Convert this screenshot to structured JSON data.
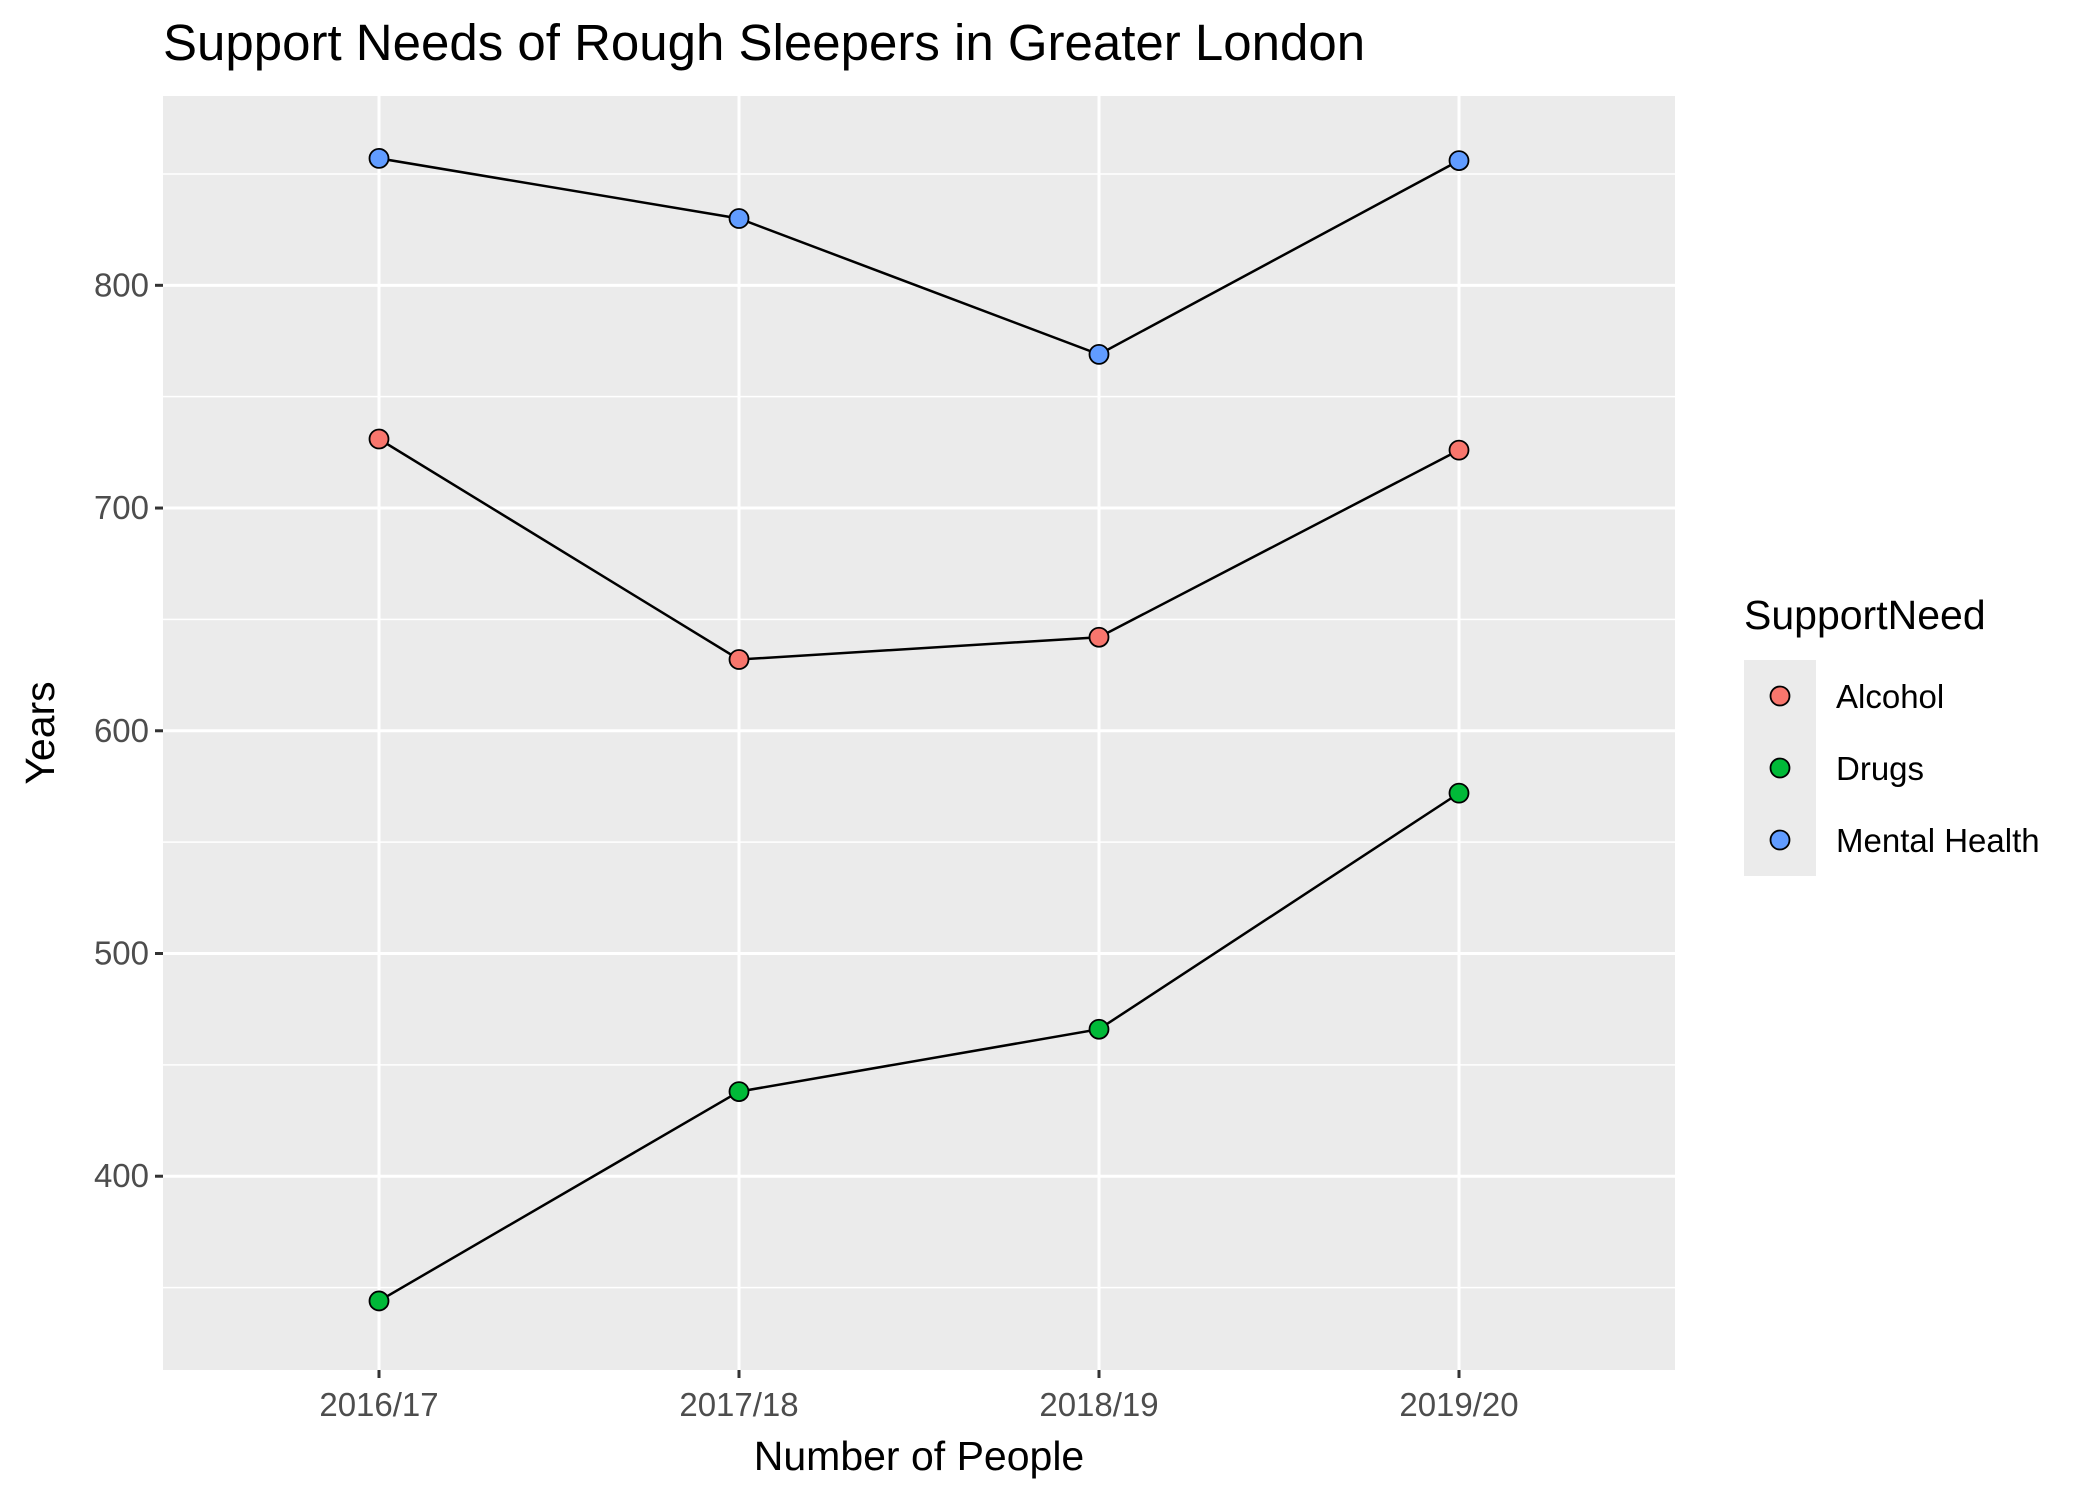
{
  "chart_data": {
    "type": "line",
    "title": "Support Needs of Rough Sleepers in Greater London",
    "xlabel": "Number of People",
    "ylabel": "Years",
    "categories": [
      "2016/17",
      "2017/18",
      "2018/19",
      "2019/20"
    ],
    "ylim": [
      313,
      885
    ],
    "y_ticks": [
      400,
      500,
      600,
      700,
      800
    ],
    "grid": true,
    "legend": {
      "title": "SupportNeed",
      "position": "right"
    },
    "series": [
      {
        "name": "Alcohol",
        "color": "#F8766D",
        "values": [
          731,
          632,
          642,
          726
        ]
      },
      {
        "name": "Drugs",
        "color": "#00BA38",
        "values": [
          344,
          438,
          466,
          572
        ]
      },
      {
        "name": "Mental Health",
        "color": "#619CFF",
        "values": [
          857,
          830,
          769,
          856
        ]
      }
    ]
  }
}
